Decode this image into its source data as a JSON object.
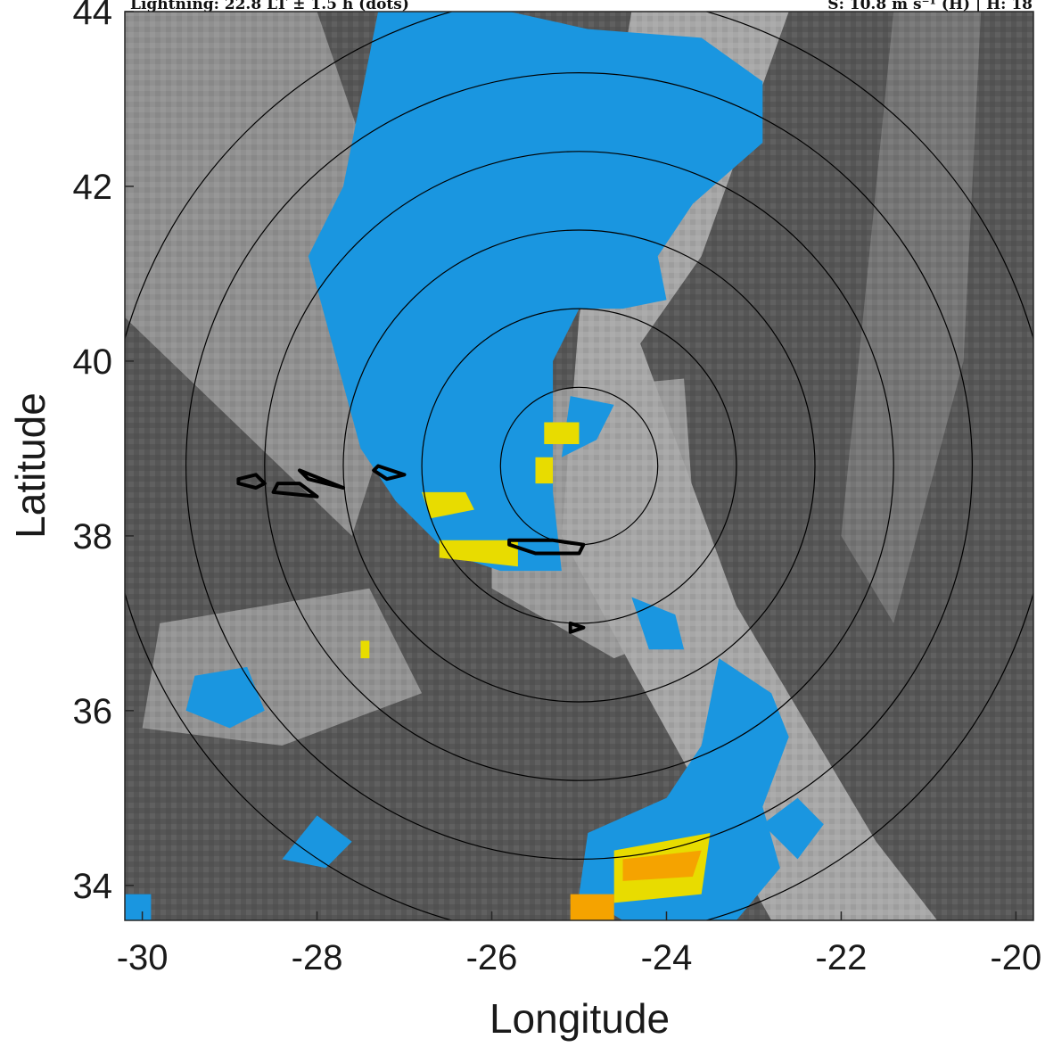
{
  "header": {
    "left": "Lightning: 22.8 LT ± 1.5 h (dots)",
    "right": "S: 10.8 m s⁻¹ (H) | H: 18"
  },
  "chart_data": {
    "type": "heatmap",
    "xlabel": "Longitude",
    "ylabel": "Latitude",
    "xlim": [
      -30.2,
      -19.8
    ],
    "ylim": [
      33.6,
      44.0
    ],
    "xticks": [
      -30,
      -28,
      -26,
      -24,
      -22,
      -20
    ],
    "yticks": [
      34,
      36,
      38,
      40,
      42,
      44
    ],
    "xtick_labels": [
      "-30",
      "-28",
      "-26",
      "-24",
      "-22",
      "-20"
    ],
    "ytick_labels": [
      "34",
      "36",
      "38",
      "40",
      "42",
      "44"
    ],
    "background": "grayscale satellite brightness field",
    "center": [
      -25.0,
      38.8
    ],
    "range_rings_deg": [
      0.9,
      1.8,
      2.7,
      3.6,
      4.5,
      5.4
    ],
    "colors": {
      "blue_field": "#1a96e0",
      "yellow_field": "#e8dc00",
      "orange_field": "#f5a300",
      "contour": "#000000",
      "ring": "#000000"
    },
    "blue_regions": [
      [
        [
          -27.3,
          44.0
        ],
        [
          -25.8,
          44.0
        ],
        [
          -24.9,
          43.8
        ],
        [
          -23.6,
          43.7
        ],
        [
          -22.9,
          43.2
        ],
        [
          -22.9,
          42.5
        ],
        [
          -23.7,
          41.8
        ],
        [
          -24.1,
          41.2
        ],
        [
          -24.0,
          40.7
        ],
        [
          -24.5,
          40.6
        ],
        [
          -25.0,
          40.6
        ],
        [
          -25.3,
          40.0
        ],
        [
          -25.3,
          39.2
        ],
        [
          -25.3,
          38.5
        ],
        [
          -25.2,
          37.6
        ],
        [
          -25.9,
          37.6
        ],
        [
          -26.5,
          37.8
        ],
        [
          -27.1,
          38.4
        ],
        [
          -27.5,
          39.0
        ],
        [
          -27.8,
          40.1
        ],
        [
          -28.1,
          41.2
        ],
        [
          -27.7,
          42.0
        ],
        [
          -27.5,
          43.0
        ]
      ],
      [
        [
          -25.1,
          39.6
        ],
        [
          -24.6,
          39.5
        ],
        [
          -24.8,
          39.1
        ],
        [
          -25.2,
          38.9
        ]
      ],
      [
        [
          -23.4,
          36.6
        ],
        [
          -23.6,
          35.6
        ],
        [
          -24.0,
          35.0
        ],
        [
          -24.9,
          34.6
        ],
        [
          -25.0,
          33.9
        ],
        [
          -24.5,
          33.6
        ],
        [
          -23.2,
          33.6
        ],
        [
          -22.7,
          34.2
        ],
        [
          -22.9,
          34.9
        ],
        [
          -22.6,
          35.7
        ],
        [
          -22.8,
          36.2
        ]
      ],
      [
        [
          -24.4,
          37.3
        ],
        [
          -23.9,
          37.1
        ],
        [
          -23.8,
          36.7
        ],
        [
          -24.2,
          36.7
        ]
      ],
      [
        [
          -29.4,
          36.4
        ],
        [
          -28.8,
          36.5
        ],
        [
          -28.6,
          36.0
        ],
        [
          -29.0,
          35.8
        ],
        [
          -29.5,
          36.0
        ]
      ],
      [
        [
          -28.0,
          34.8
        ],
        [
          -27.6,
          34.5
        ],
        [
          -27.9,
          34.2
        ],
        [
          -28.4,
          34.3
        ]
      ],
      [
        [
          -30.2,
          33.9
        ],
        [
          -29.9,
          33.9
        ],
        [
          -29.9,
          33.6
        ],
        [
          -30.2,
          33.6
        ]
      ],
      [
        [
          -22.5,
          35.0
        ],
        [
          -22.2,
          34.7
        ],
        [
          -22.5,
          34.3
        ],
        [
          -22.9,
          34.7
        ]
      ]
    ],
    "yellow_regions": [
      [
        [
          -26.6,
          37.95
        ],
        [
          -25.7,
          37.95
        ],
        [
          -25.7,
          37.65
        ],
        [
          -26.6,
          37.75
        ]
      ],
      [
        [
          -26.8,
          38.5
        ],
        [
          -26.3,
          38.5
        ],
        [
          -26.2,
          38.3
        ],
        [
          -26.7,
          38.2
        ]
      ],
      [
        [
          -25.4,
          39.3
        ],
        [
          -25.0,
          39.3
        ],
        [
          -25.0,
          39.05
        ],
        [
          -25.4,
          39.05
        ]
      ],
      [
        [
          -25.5,
          38.9
        ],
        [
          -25.3,
          38.9
        ],
        [
          -25.3,
          38.6
        ],
        [
          -25.5,
          38.6
        ]
      ],
      [
        [
          -24.6,
          34.4
        ],
        [
          -23.5,
          34.6
        ],
        [
          -23.6,
          33.9
        ],
        [
          -24.6,
          33.8
        ]
      ],
      [
        [
          -27.5,
          36.8
        ],
        [
          -27.4,
          36.8
        ],
        [
          -27.4,
          36.6
        ],
        [
          -27.5,
          36.6
        ]
      ]
    ],
    "orange_regions": [
      [
        [
          -24.5,
          34.3
        ],
        [
          -23.6,
          34.4
        ],
        [
          -23.7,
          34.1
        ],
        [
          -24.5,
          34.05
        ]
      ],
      [
        [
          -25.1,
          33.9
        ],
        [
          -24.6,
          33.9
        ],
        [
          -24.6,
          33.6
        ],
        [
          -25.1,
          33.6
        ]
      ]
    ],
    "contours": [
      [
        [
          -28.9,
          38.6
        ],
        [
          -28.7,
          38.55
        ],
        [
          -28.6,
          38.6
        ],
        [
          -28.7,
          38.7
        ],
        [
          -28.9,
          38.65
        ]
      ],
      [
        [
          -28.5,
          38.5
        ],
        [
          -28.0,
          38.45
        ],
        [
          -28.2,
          38.6
        ],
        [
          -28.45,
          38.6
        ]
      ],
      [
        [
          -28.2,
          38.75
        ],
        [
          -27.7,
          38.55
        ],
        [
          -28.1,
          38.65
        ]
      ],
      [
        [
          -27.3,
          38.8
        ],
        [
          -27.0,
          38.7
        ],
        [
          -27.2,
          38.65
        ],
        [
          -27.35,
          38.75
        ]
      ],
      [
        [
          -25.8,
          37.9
        ],
        [
          -25.5,
          37.8
        ],
        [
          -25.0,
          37.8
        ],
        [
          -24.95,
          37.9
        ],
        [
          -25.3,
          37.95
        ],
        [
          -25.8,
          37.95
        ]
      ],
      [
        [
          -25.1,
          37.0
        ],
        [
          -24.95,
          36.95
        ],
        [
          -25.1,
          36.9
        ]
      ]
    ]
  }
}
